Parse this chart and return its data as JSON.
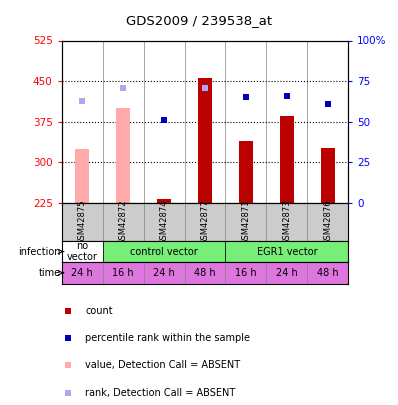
{
  "title": "GDS2009 / 239538_at",
  "samples": [
    "GSM42875",
    "GSM42872",
    "GSM42874",
    "GSM42877",
    "GSM42871",
    "GSM42873",
    "GSM42876"
  ],
  "bar_values": [
    325,
    400,
    232,
    456,
    340,
    385,
    327
  ],
  "bar_absent": [
    true,
    true,
    false,
    false,
    false,
    false,
    false
  ],
  "rank_values": [
    63,
    71,
    51,
    71,
    65,
    66,
    61
  ],
  "rank_absent": [
    true,
    true,
    false,
    true,
    false,
    false,
    false
  ],
  "ylim_left": [
    225,
    525
  ],
  "ylim_right": [
    0,
    100
  ],
  "yticks_left": [
    225,
    300,
    375,
    450,
    525
  ],
  "yticks_right": [
    0,
    25,
    50,
    75,
    100
  ],
  "ytick_right_labels": [
    "0",
    "25",
    "50",
    "75",
    "100%"
  ],
  "time_labels": [
    "24 h",
    "16 h",
    "24 h",
    "48 h",
    "16 h",
    "24 h",
    "48 h"
  ],
  "time_bg_color": "#dd77dd",
  "sample_bg_color": "#cccccc",
  "bar_color_present": "#bb0000",
  "bar_color_absent": "#ffaaaa",
  "rank_color_present": "#0000bb",
  "rank_color_absent": "#aaaaee",
  "legend_items": [
    {
      "label": "count",
      "color": "#bb0000"
    },
    {
      "label": "percentile rank within the sample",
      "color": "#0000bb"
    },
    {
      "label": "value, Detection Call = ABSENT",
      "color": "#ffaaaa"
    },
    {
      "label": "rank, Detection Call = ABSENT",
      "color": "#aaaaee"
    }
  ],
  "infection_groups": [
    {
      "label": "no\nvector",
      "start": 0,
      "end": 1,
      "bg": "#ffffff"
    },
    {
      "label": "control vector",
      "start": 1,
      "end": 4,
      "bg": "#77ee77"
    },
    {
      "label": "EGR1 vector",
      "start": 4,
      "end": 7,
      "bg": "#77ee77"
    }
  ]
}
